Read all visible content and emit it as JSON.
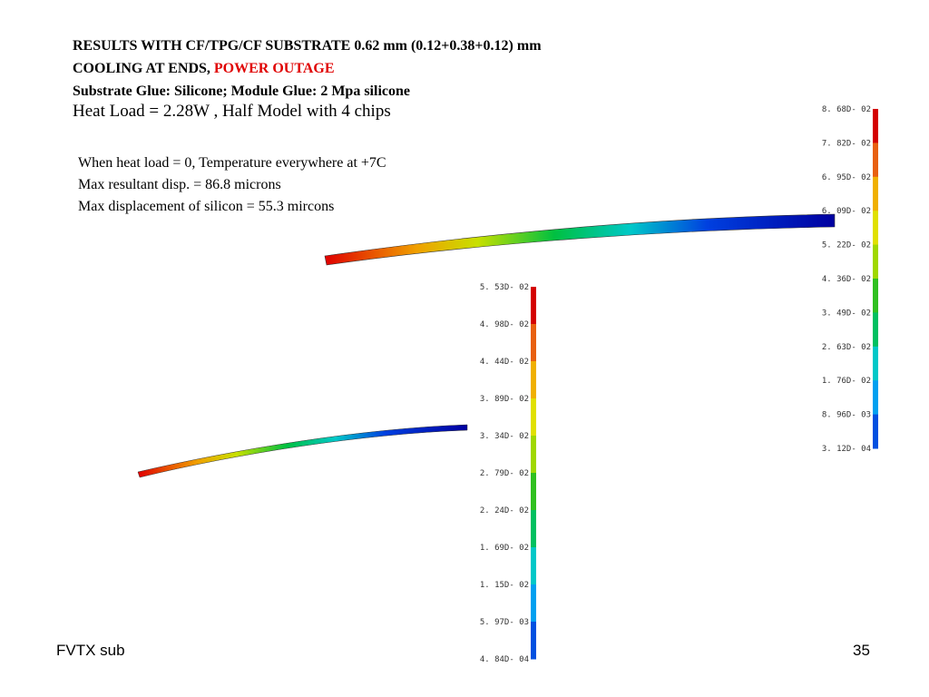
{
  "header": {
    "line1": "RESULTS WITH CF/TPG/CF SUBSTRATE 0.62 mm (0.12+0.38+0.12) mm",
    "line2": "COOLING AT ENDS,",
    "line2_highlight": "POWER OUTAGE",
    "line3": "Substrate Glue: Silicone;  Module Glue: 2 Mpa silicone"
  },
  "subtitle": "Heat Load = 2.28W , Half Model with 4 chips",
  "notes": [
    "When heat load = 0, Temperature everywhere at +7C",
    "Max resultant disp. = 86.8 microns",
    "Max displacement of silicon = 55.3 mircons"
  ],
  "legend_right": {
    "labels": [
      "8. 68D- 02",
      "7. 82D- 02",
      "6. 95D- 02",
      "6. 09D- 02",
      "5. 22D- 02",
      "4. 36D- 02",
      "3. 49D- 02",
      "2. 63D- 02",
      "1. 76D- 02",
      "8. 96D- 03",
      "3. 12D- 04"
    ]
  },
  "legend_left": {
    "labels": [
      "5. 53D- 02",
      "4. 98D- 02",
      "4. 44D- 02",
      "3. 89D- 02",
      "3. 34D- 02",
      "2. 79D- 02",
      "2. 24D- 02",
      "1. 69D- 02",
      "1. 15D- 02",
      "5. 97D- 03",
      "4. 84D- 04"
    ]
  },
  "footer": {
    "left": "FVTX sub",
    "page": "35"
  }
}
